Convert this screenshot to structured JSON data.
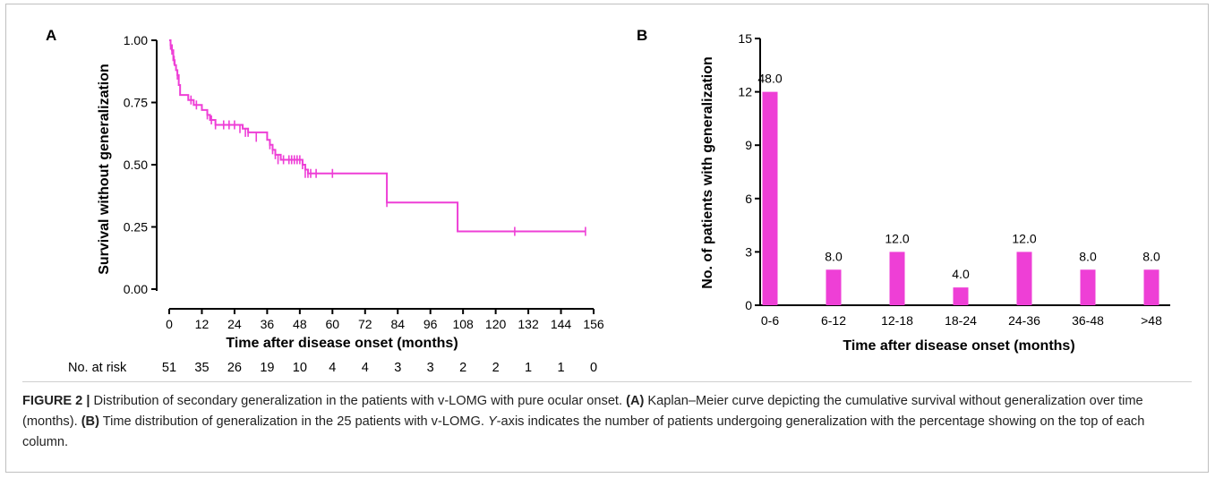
{
  "chart_data": [
    {
      "type": "line",
      "panel_label": "A",
      "xlabel": "Time after disease onset (months)",
      "ylabel": "Survival without generalization",
      "xlim": [
        0,
        156
      ],
      "ylim": [
        0,
        1
      ],
      "xticks": [
        0,
        12,
        24,
        36,
        48,
        60,
        72,
        84,
        96,
        108,
        120,
        132,
        144,
        156
      ],
      "yticks": [
        "0.00",
        "0.25",
        "0.50",
        "0.75",
        "1.00"
      ],
      "yticks_values": [
        0,
        0.25,
        0.5,
        0.75,
        1.0
      ],
      "color": "#ee3fd6",
      "step_points": [
        [
          0,
          1.0
        ],
        [
          0.5,
          0.98
        ],
        [
          1,
          0.96
        ],
        [
          1.5,
          0.92
        ],
        [
          2,
          0.9
        ],
        [
          2.5,
          0.88
        ],
        [
          3,
          0.86
        ],
        [
          3.5,
          0.82
        ],
        [
          4,
          0.78
        ],
        [
          7,
          0.76
        ],
        [
          9,
          0.74
        ],
        [
          12,
          0.72
        ],
        [
          14,
          0.7
        ],
        [
          15,
          0.68
        ],
        [
          17,
          0.66
        ],
        [
          27,
          0.645
        ],
        [
          29,
          0.63
        ],
        [
          36,
          0.6
        ],
        [
          37,
          0.58
        ],
        [
          38,
          0.56
        ],
        [
          39,
          0.54
        ],
        [
          41,
          0.52
        ],
        [
          49,
          0.5
        ],
        [
          50,
          0.48
        ],
        [
          51,
          0.465
        ],
        [
          80,
          0.348
        ],
        [
          106,
          0.232
        ],
        [
          153,
          0.232
        ]
      ],
      "censor_marks": [
        [
          0.5,
          0.98
        ],
        [
          1,
          0.96
        ],
        [
          1.8,
          0.92
        ],
        [
          3,
          0.86
        ],
        [
          8,
          0.76
        ],
        [
          10,
          0.74
        ],
        [
          14,
          0.7
        ],
        [
          15.5,
          0.68
        ],
        [
          17,
          0.66
        ],
        [
          20,
          0.66
        ],
        [
          22,
          0.66
        ],
        [
          24,
          0.66
        ],
        [
          26,
          0.645
        ],
        [
          28,
          0.63
        ],
        [
          29,
          0.63
        ],
        [
          32,
          0.61
        ],
        [
          37,
          0.58
        ],
        [
          38,
          0.56
        ],
        [
          39,
          0.54
        ],
        [
          40,
          0.52
        ],
        [
          42,
          0.52
        ],
        [
          44,
          0.52
        ],
        [
          45,
          0.52
        ],
        [
          46,
          0.52
        ],
        [
          47,
          0.52
        ],
        [
          48,
          0.52
        ],
        [
          49,
          0.5
        ],
        [
          50,
          0.465
        ],
        [
          51,
          0.465
        ],
        [
          52,
          0.465
        ],
        [
          54,
          0.465
        ],
        [
          60,
          0.465
        ],
        [
          80,
          0.348
        ],
        [
          127,
          0.232
        ],
        [
          153,
          0.232
        ]
      ],
      "risk_table": {
        "label": "No. at risk",
        "values": [
          "51",
          "35",
          "26",
          "19",
          "10",
          "4",
          "4",
          "3",
          "3",
          "2",
          "2",
          "1",
          "1",
          "0"
        ]
      }
    },
    {
      "type": "bar",
      "panel_label": "B",
      "xlabel": "Time after disease onset (months)",
      "ylabel": "No. of patients with generalization",
      "ylim": [
        0,
        15
      ],
      "yticks": [
        0,
        3,
        6,
        9,
        12,
        15
      ],
      "color": "#ee3fd6",
      "categories": [
        "0-6",
        "6-12",
        "12-18",
        "18-24",
        "24-36",
        "36-48",
        ">48"
      ],
      "values": [
        12,
        2,
        3,
        1,
        3,
        2,
        2
      ],
      "data_labels": [
        "48.0",
        "8.0",
        "12.0",
        "4.0",
        "12.0",
        "8.0",
        "8.0"
      ]
    }
  ],
  "caption": {
    "figure_label": "FIGURE 2 |",
    "text1": " Distribution of secondary generalization in the patients with v-LOMG with pure ocular onset. ",
    "a_label": "(A)",
    "text2": " Kaplan–Meier curve depicting the cumulative survival without generalization over time (months). ",
    "b_label": "(B)",
    "text3": " Time distribution of generalization in the 25 patients with v-LOMG. ",
    "y_word": "Y",
    "text4": "-axis indicates the number of patients undergoing generalization with the percentage showing on the top of each column."
  }
}
